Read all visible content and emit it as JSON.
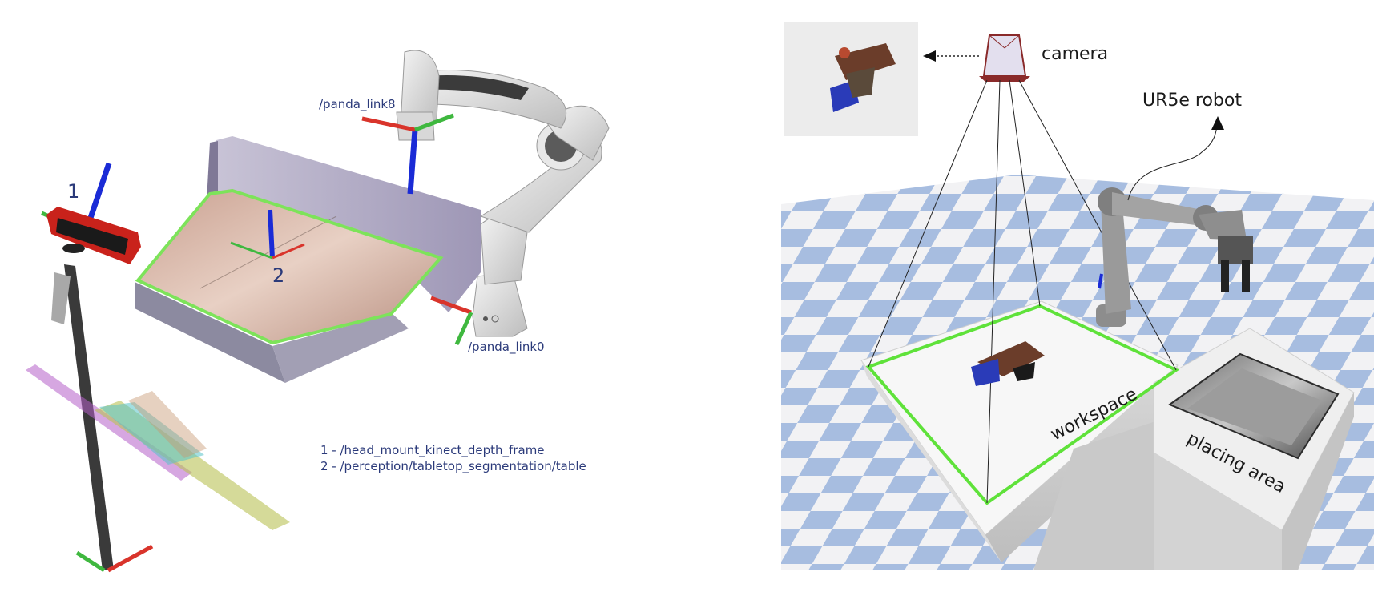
{
  "left": {
    "frame_labels": {
      "panda_link8": "/panda_link8",
      "panda_link0": "/panda_link0",
      "marker_1": "1",
      "marker_2": "2"
    },
    "legend": [
      "1 - /head_mount_kinect_depth_frame",
      "2 - /perception/tabletop_segmentation/table"
    ]
  },
  "right": {
    "labels": {
      "camera": "camera",
      "robot": "UR5e robot",
      "workspace": "workspace",
      "placing_area": "placing area"
    }
  },
  "colors": {
    "axis_x": "#d9342b",
    "axis_y": "#3fb83f",
    "axis_z": "#1a2bd6",
    "segmentation_outline": "#7de35a",
    "workspace_outline": "#5fe23a",
    "label_blue": "#2b3a7a"
  }
}
